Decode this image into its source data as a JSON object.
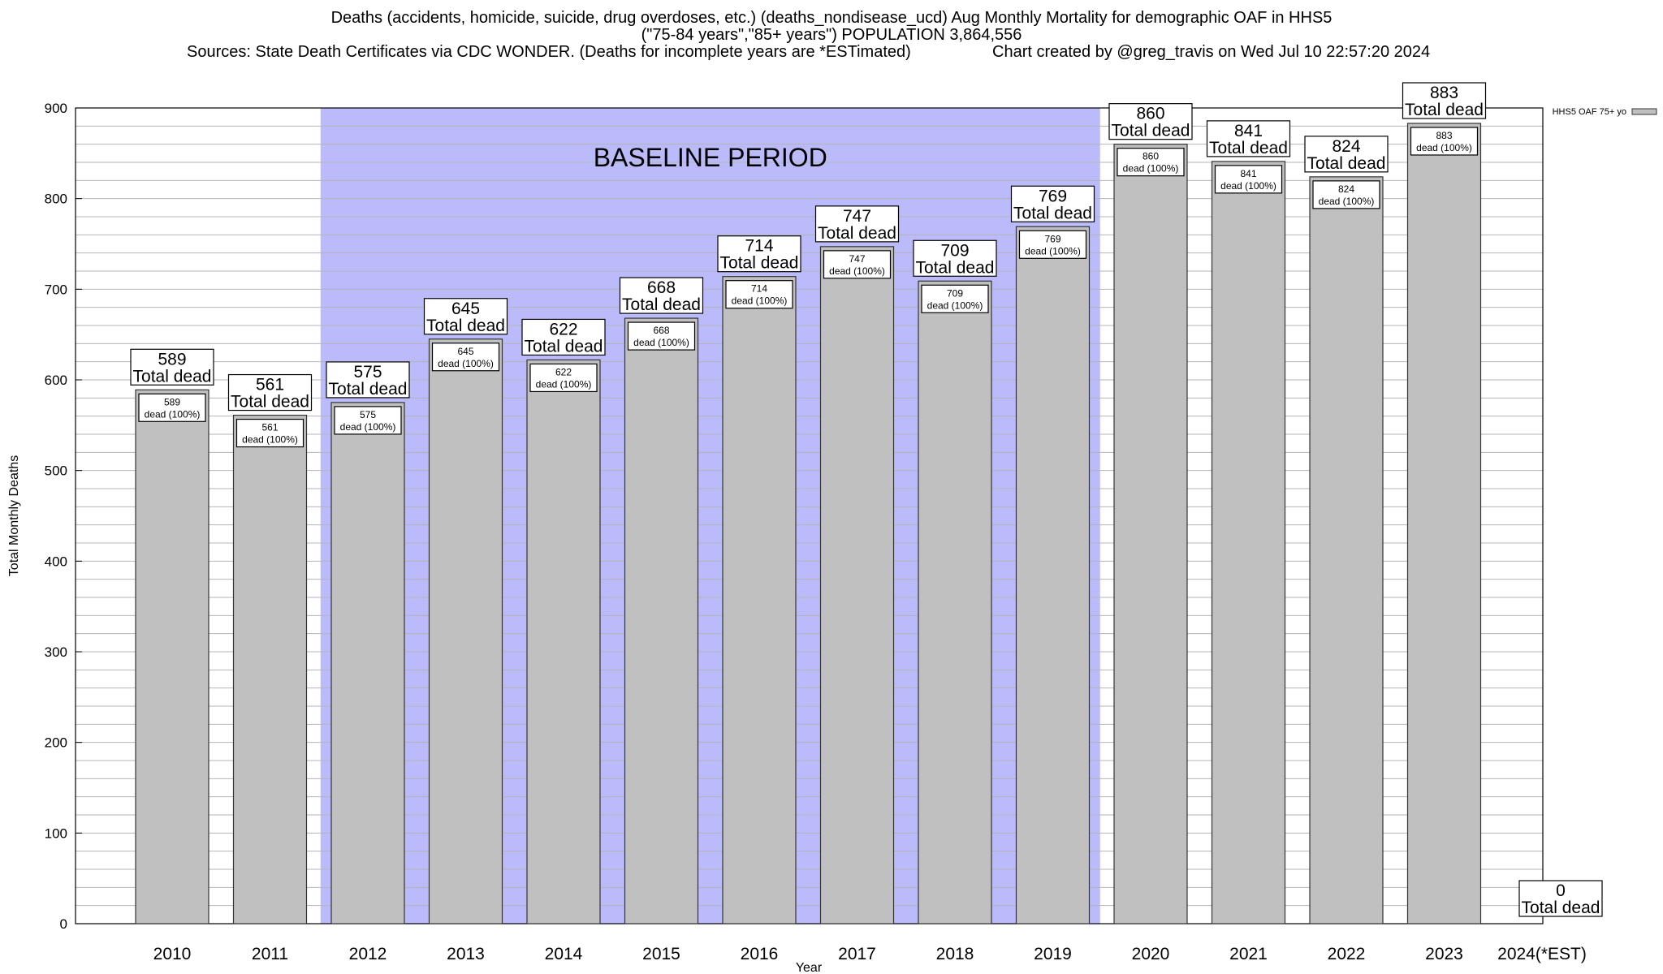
{
  "title": {
    "line1": "Deaths (accidents, homicide, suicide, drug overdoses, etc.) (deaths_nondisease_ucd) Aug Monthly Mortality for demographic OAF in HHS5",
    "line2": "(\"75-84 years\",\"85+ years\") POPULATION 3,864,556",
    "sources": "Sources: State Death Certificates via CDC WONDER. (Deaths for incomplete years are *ESTimated)",
    "credit": "Chart created by @greg_travis on Wed Jul 10 22:57:20 2024"
  },
  "chart_data": {
    "type": "bar",
    "xlabel": "Year",
    "ylabel": "Total Monthly Deaths",
    "ylim": [
      0,
      900
    ],
    "y_ticks": [
      0,
      100,
      200,
      300,
      400,
      500,
      600,
      700,
      800,
      900
    ],
    "y_minor_step": 20,
    "grid": true,
    "categories": [
      "2010",
      "2011",
      "2012",
      "2013",
      "2014",
      "2015",
      "2016",
      "2017",
      "2018",
      "2019",
      "2020",
      "2021",
      "2022",
      "2023",
      "2024(*EST)"
    ],
    "values": [
      589,
      561,
      575,
      645,
      622,
      668,
      714,
      747,
      709,
      769,
      860,
      841,
      824,
      883,
      0
    ],
    "total_label": "Total dead",
    "inner_label": "dead (100%)",
    "legend": {
      "label": "HHS5 OAF 75+ yo",
      "placement": "top-right, outside plot"
    },
    "baseline": {
      "label": "BASELINE PERIOD",
      "from": "2012",
      "to": "2019",
      "color": "#bbbbfb"
    },
    "colors": {
      "bar": "#c0c0c0",
      "bar_edge": "#333333",
      "grid": "#b4b4b4"
    }
  }
}
